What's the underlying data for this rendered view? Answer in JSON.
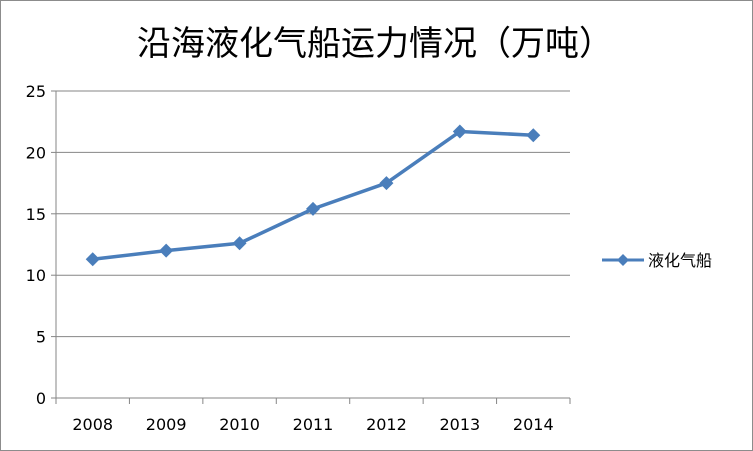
{
  "chart_data": {
    "type": "line",
    "title": "沿海液化气船运力情况（万吨）",
    "categories": [
      "2008",
      "2009",
      "2010",
      "2011",
      "2012",
      "2013",
      "2014"
    ],
    "series": [
      {
        "name": "液化气船",
        "values": [
          11.3,
          12.0,
          12.6,
          15.4,
          17.5,
          21.7,
          21.4
        ],
        "color": "#4a7ebb",
        "marker": "diamond"
      }
    ],
    "xlabel": "",
    "ylabel": "",
    "ylim": [
      0,
      25
    ],
    "yticks": [
      0,
      5,
      10,
      15,
      20,
      25
    ],
    "grid": true,
    "legend": "right"
  }
}
